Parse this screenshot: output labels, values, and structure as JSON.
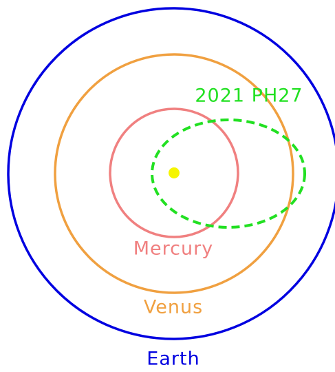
{
  "labels": {
    "asteroid": "2021 PH27",
    "mercury": "Mercury",
    "venus": "Venus",
    "earth": "Earth"
  }
}
